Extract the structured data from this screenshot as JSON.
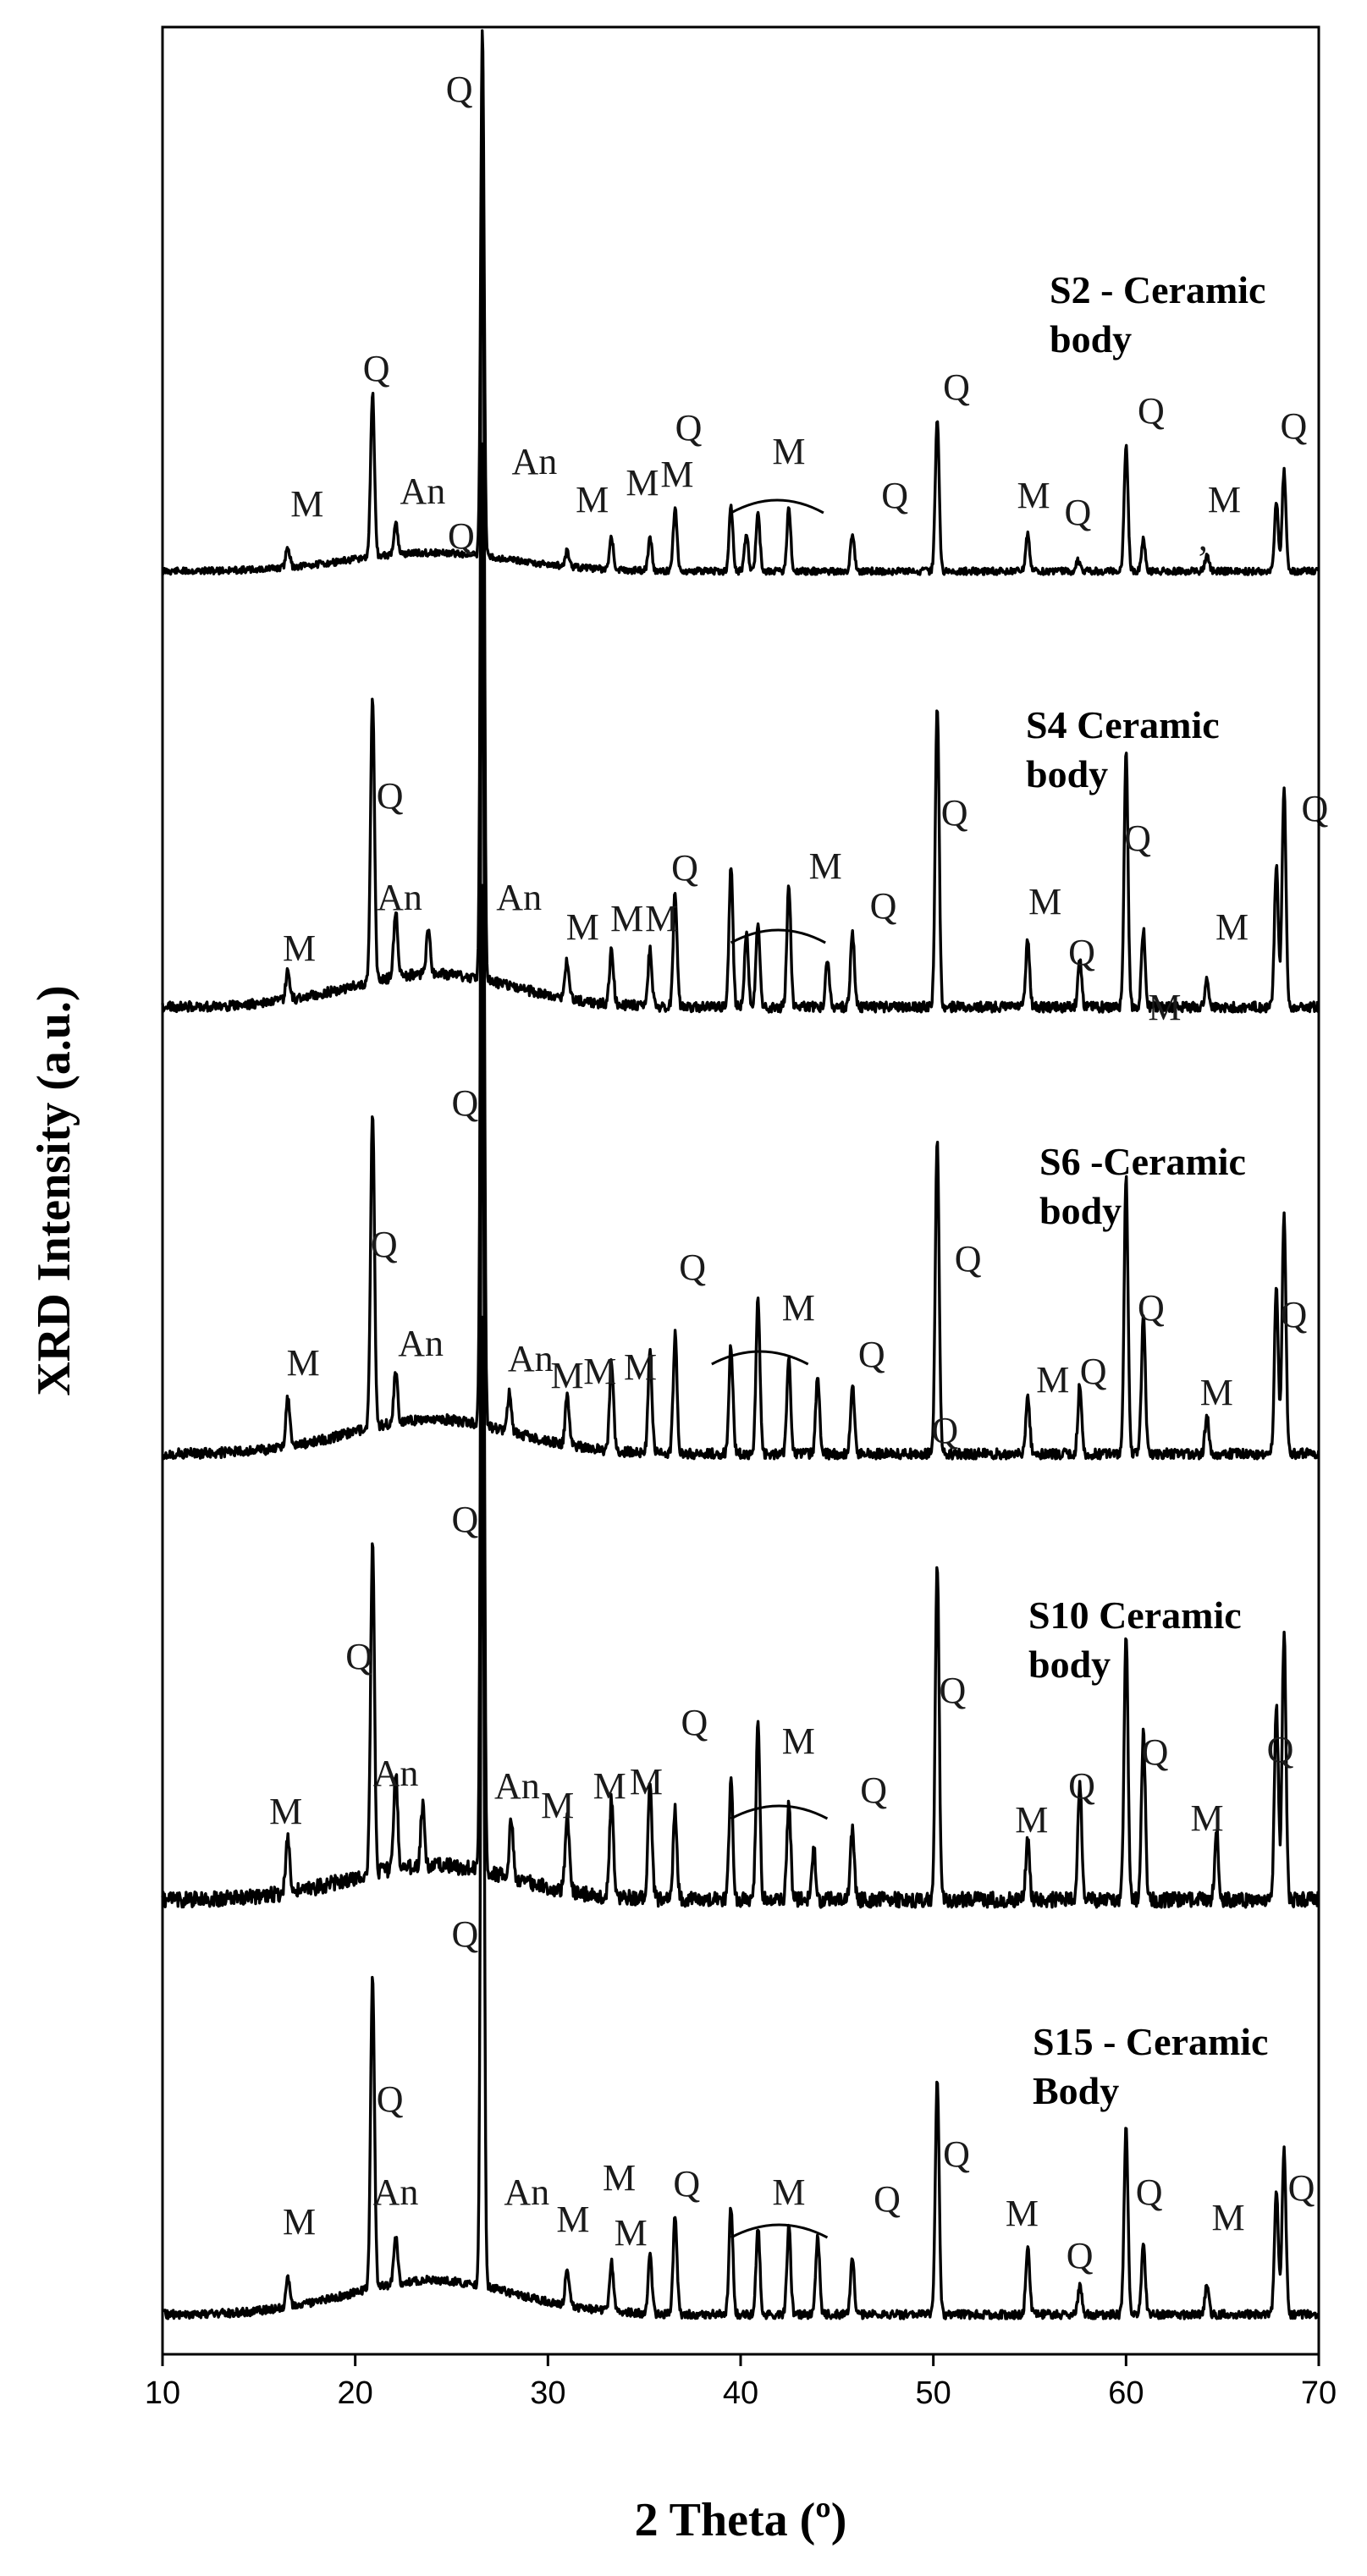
{
  "chart_data": {
    "type": "line",
    "title": "",
    "xlabel": "2 Theta (º)",
    "ylabel": "XRD Intensity (a.u.)",
    "xlim": [
      10,
      70
    ],
    "xticks": [
      10,
      20,
      30,
      40,
      50,
      60,
      70
    ],
    "yticks_visible": false,
    "stacked": true,
    "series": [
      {
        "name": "S2 - Ceramic body",
        "name_lines": [
          "S2 - Ceramic",
          "body"
        ],
        "peaks": [
          [
            16.5,
            0.04
          ],
          [
            20.9,
            0.31
          ],
          [
            22.1,
            0.06
          ],
          [
            26.6,
            1.0
          ],
          [
            31.0,
            0.03
          ],
          [
            33.3,
            0.06
          ],
          [
            35.3,
            0.06
          ],
          [
            36.6,
            0.12
          ],
          [
            39.5,
            0.12
          ],
          [
            40.3,
            0.07
          ],
          [
            40.9,
            0.11
          ],
          [
            42.5,
            0.12
          ],
          [
            45.8,
            0.07
          ],
          [
            50.2,
            0.29
          ],
          [
            54.9,
            0.07
          ],
          [
            57.5,
            0.02
          ],
          [
            60.0,
            0.24
          ],
          [
            60.9,
            0.06
          ],
          [
            64.2,
            0.03
          ],
          [
            67.8,
            0.13
          ],
          [
            68.2,
            0.19
          ]
        ],
        "annotations": [
          {
            "text": "Q",
            "x": 25.4
          },
          {
            "text": "Q",
            "x": 21.1
          },
          {
            "text": "M",
            "x": 17.5
          },
          {
            "text": "An",
            "x": 23.5
          },
          {
            "text": "An",
            "x": 29.3
          },
          {
            "text": "M",
            "x": 32.3
          },
          {
            "text": "M",
            "x": 34.9
          },
          {
            "text": "M",
            "x": 36.7
          },
          {
            "text": "Q",
            "x": 37.3
          },
          {
            "text": "M",
            "x": 42.5
          },
          {
            "text": "Q",
            "x": 48.0
          },
          {
            "text": "Q",
            "x": 51.2
          },
          {
            "text": "M",
            "x": 55.2
          },
          {
            "text": "Q",
            "x": 57.5
          },
          {
            "text": "Q",
            "x": 61.3
          },
          {
            "text": "M",
            "x": 65.1
          },
          {
            "text": ",",
            "x": 64.0
          },
          {
            "text": "Q",
            "x": 68.7
          }
        ]
      },
      {
        "name": "S4 Ceramic body",
        "name_lines": [
          "S4 Ceramic",
          "body"
        ],
        "peaks": [
          [
            16.5,
            0.03
          ],
          [
            20.9,
            0.3
          ],
          [
            22.1,
            0.07
          ],
          [
            23.8,
            0.05
          ],
          [
            26.6,
            1.0
          ],
          [
            31.0,
            0.04
          ],
          [
            33.3,
            0.06
          ],
          [
            35.3,
            0.06
          ],
          [
            36.6,
            0.12
          ],
          [
            39.5,
            0.15
          ],
          [
            40.3,
            0.08
          ],
          [
            40.9,
            0.09
          ],
          [
            42.5,
            0.13
          ],
          [
            44.5,
            0.05
          ],
          [
            45.8,
            0.08
          ],
          [
            50.2,
            0.32
          ],
          [
            54.9,
            0.07
          ],
          [
            57.6,
            0.05
          ],
          [
            60.0,
            0.27
          ],
          [
            60.9,
            0.08
          ],
          [
            64.2,
            0.03
          ],
          [
            67.8,
            0.15
          ],
          [
            68.2,
            0.23
          ]
        ],
        "annotations": [
          {
            "text": "Q",
            "x": 25.5
          },
          {
            "text": "Q",
            "x": 21.8
          },
          {
            "text": "M",
            "x": 17.1
          },
          {
            "text": "An",
            "x": 22.3
          },
          {
            "text": "An",
            "x": 28.5
          },
          {
            "text": "M",
            "x": 31.8
          },
          {
            "text": "M",
            "x": 34.1
          },
          {
            "text": "M",
            "x": 35.9
          },
          {
            "text": "Q",
            "x": 37.1
          },
          {
            "text": "M",
            "x": 44.4
          },
          {
            "text": "Q",
            "x": 47.4
          },
          {
            "text": "Q",
            "x": 51.1
          },
          {
            "text": "M",
            "x": 55.8
          },
          {
            "text": "Q",
            "x": 57.7
          },
          {
            "text": "Q",
            "x": 60.6
          },
          {
            "text": "M",
            "x": 62.0
          },
          {
            "text": "M",
            "x": 65.5
          },
          {
            "text": "Q",
            "x": 69.8
          }
        ]
      },
      {
        "name": "S6 -Ceramic body",
        "name_lines": [
          "S6 -Ceramic",
          "body"
        ],
        "peaks": [
          [
            16.5,
            0.05
          ],
          [
            20.9,
            0.32
          ],
          [
            22.1,
            0.05
          ],
          [
            26.6,
            1.0
          ],
          [
            28.0,
            0.04
          ],
          [
            31.0,
            0.05
          ],
          [
            33.3,
            0.09
          ],
          [
            35.3,
            0.1
          ],
          [
            36.6,
            0.12
          ],
          [
            39.5,
            0.11
          ],
          [
            40.9,
            0.16
          ],
          [
            42.5,
            0.1
          ],
          [
            44.0,
            0.08
          ],
          [
            45.8,
            0.07
          ],
          [
            50.2,
            0.32
          ],
          [
            54.9,
            0.06
          ],
          [
            57.6,
            0.07
          ],
          [
            60.0,
            0.28
          ],
          [
            60.9,
            0.14
          ],
          [
            64.2,
            0.04
          ],
          [
            67.8,
            0.17
          ],
          [
            68.2,
            0.24
          ]
        ],
        "annotations": [
          {
            "text": "Q",
            "x": 25.7
          },
          {
            "text": "Q",
            "x": 21.5
          },
          {
            "text": "M",
            "x": 17.3
          },
          {
            "text": "An",
            "x": 23.4
          },
          {
            "text": "An",
            "x": 29.1
          },
          {
            "text": "M",
            "x": 31.0
          },
          {
            "text": "M",
            "x": 32.7
          },
          {
            "text": "M",
            "x": 34.8
          },
          {
            "text": "Q",
            "x": 37.5
          },
          {
            "text": "M",
            "x": 43.0
          },
          {
            "text": "Q",
            "x": 46.8
          },
          {
            "text": "Q",
            "x": 51.8
          },
          {
            "text": "Q",
            "x": 50.6
          },
          {
            "text": "M",
            "x": 56.2
          },
          {
            "text": "Q",
            "x": 58.3
          },
          {
            "text": "Q",
            "x": 61.3
          },
          {
            "text": "M",
            "x": 64.7
          },
          {
            "text": "Q",
            "x": 68.7
          }
        ]
      },
      {
        "name": "S10 Ceramic body",
        "name_lines": [
          "S10 Ceramic",
          "body"
        ],
        "peaks": [
          [
            16.5,
            0.06
          ],
          [
            20.9,
            0.33
          ],
          [
            22.1,
            0.1
          ],
          [
            23.5,
            0.06
          ],
          [
            26.6,
            1.0
          ],
          [
            28.1,
            0.06
          ],
          [
            31.0,
            0.08
          ],
          [
            33.3,
            0.1
          ],
          [
            35.3,
            0.12
          ],
          [
            36.6,
            0.09
          ],
          [
            39.5,
            0.12
          ],
          [
            40.9,
            0.18
          ],
          [
            42.5,
            0.1
          ],
          [
            43.8,
            0.05
          ],
          [
            45.8,
            0.07
          ],
          [
            50.2,
            0.34
          ],
          [
            54.9,
            0.06
          ],
          [
            57.6,
            0.12
          ],
          [
            60.0,
            0.27
          ],
          [
            60.9,
            0.17
          ],
          [
            64.7,
            0.07
          ],
          [
            67.8,
            0.2
          ],
          [
            68.2,
            0.27
          ]
        ],
        "annotations": [
          {
            "text": "Q",
            "x": 25.7
          },
          {
            "text": "Q",
            "x": 20.2
          },
          {
            "text": "M",
            "x": 16.4
          },
          {
            "text": "An",
            "x": 22.1
          },
          {
            "text": "An",
            "x": 28.4
          },
          {
            "text": "M",
            "x": 30.5
          },
          {
            "text": "M",
            "x": 33.2
          },
          {
            "text": "M",
            "x": 35.1
          },
          {
            "text": "Q",
            "x": 37.6
          },
          {
            "text": "M",
            "x": 43.0
          },
          {
            "text": "Q",
            "x": 46.9
          },
          {
            "text": "Q",
            "x": 51.0
          },
          {
            "text": "M",
            "x": 55.1
          },
          {
            "text": "Q",
            "x": 57.7
          },
          {
            "text": "Q",
            "x": 61.5
          },
          {
            "text": "M",
            "x": 64.2
          },
          {
            "text": "Q",
            "x": 68.0
          }
        ]
      },
      {
        "name": "S15 - Ceramic Body",
        "name_lines": [
          "S15 - Ceramic",
          "Body"
        ],
        "peaks": [
          [
            16.5,
            0.03
          ],
          [
            20.9,
            0.32
          ],
          [
            22.1,
            0.05
          ],
          [
            26.6,
            1.0
          ],
          [
            31.0,
            0.04
          ],
          [
            33.3,
            0.05
          ],
          [
            35.3,
            0.06
          ],
          [
            36.6,
            0.1
          ],
          [
            39.5,
            0.11
          ],
          [
            40.9,
            0.09
          ],
          [
            42.5,
            0.09
          ],
          [
            44.0,
            0.08
          ],
          [
            45.8,
            0.06
          ],
          [
            50.2,
            0.24
          ],
          [
            54.9,
            0.07
          ],
          [
            57.6,
            0.03
          ],
          [
            60.0,
            0.19
          ],
          [
            60.9,
            0.07
          ],
          [
            64.2,
            0.03
          ],
          [
            67.8,
            0.13
          ],
          [
            68.2,
            0.17
          ]
        ],
        "annotations": [
          {
            "text": "Q",
            "x": 25.7
          },
          {
            "text": "Q",
            "x": 21.8
          },
          {
            "text": "M",
            "x": 17.1
          },
          {
            "text": "An",
            "x": 22.1
          },
          {
            "text": "An",
            "x": 28.9
          },
          {
            "text": "M",
            "x": 31.3
          },
          {
            "text": "M",
            "x": 33.7
          },
          {
            "text": "M",
            "x": 34.3
          },
          {
            "text": "Q",
            "x": 37.2
          },
          {
            "text": "M",
            "x": 42.5
          },
          {
            "text": "Q",
            "x": 47.6
          },
          {
            "text": "Q",
            "x": 51.2
          },
          {
            "text": "M",
            "x": 54.6
          },
          {
            "text": "Q",
            "x": 57.6
          },
          {
            "text": "Q",
            "x": 61.2
          },
          {
            "text": "M",
            "x": 65.3
          },
          {
            "text": "Q",
            "x": 69.1
          }
        ]
      }
    ],
    "grid": false,
    "legend": "none"
  }
}
